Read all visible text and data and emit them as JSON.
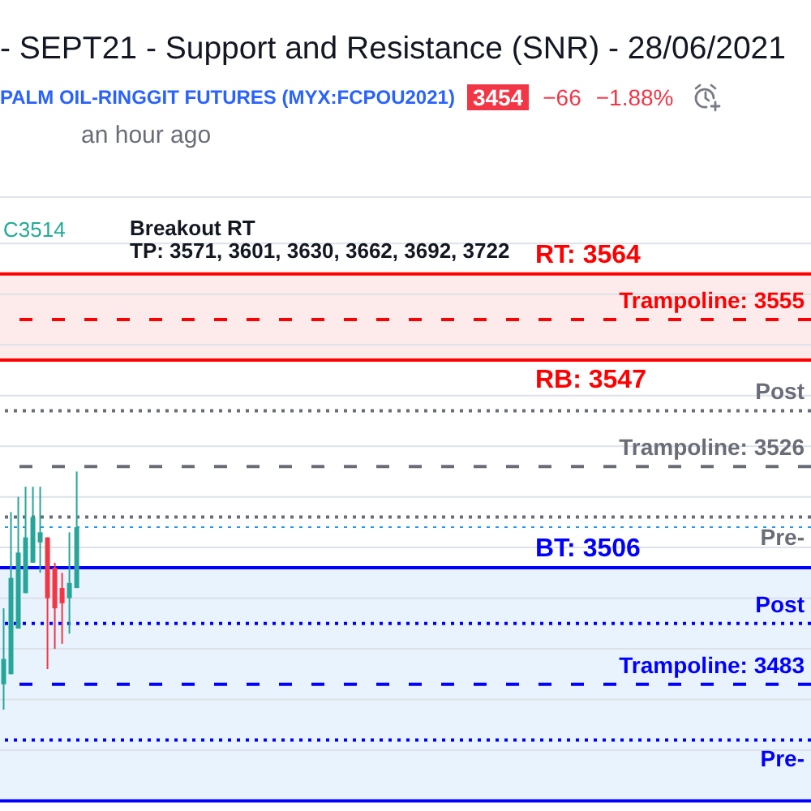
{
  "chart_data": {
    "type": "candlestick",
    "title": "- SEPT21 - Support and Resistance (SNR) - 28/06/2021",
    "subtitle": "PALM OIL-RINGGIT FUTURES (MYX:FCPOU2021)",
    "categories": [
      null,
      null,
      null,
      null,
      null,
      null,
      null,
      null,
      null,
      null,
      null,
      null,
      null,
      null,
      null,
      null,
      null,
      null,
      null,
      null,
      null,
      null,
      null,
      null,
      null,
      null,
      null,
      null,
      null,
      null,
      null,
      null,
      null,
      null,
      null,
      null,
      null,
      null,
      null,
      null,
      null,
      null,
      null,
      null,
      null,
      null,
      null,
      null,
      null,
      null,
      null,
      null,
      null,
      null,
      null,
      null,
      null,
      null,
      null,
      null,
      null,
      null,
      null,
      null,
      null,
      null,
      null,
      null,
      null,
      null,
      null,
      null,
      null,
      null,
      null,
      null,
      null,
      null,
      null,
      null,
      null,
      null,
      null,
      null,
      null,
      null,
      null,
      null,
      null,
      null,
      null,
      null,
      null,
      null,
      null,
      null,
      null,
      null,
      null,
      null,
      null,
      null,
      null,
      null,
      null,
      null,
      null,
      null,
      null,
      null,
      null
    ],
    "ohlc": [
      [
        3483,
        3498,
        3478,
        3488
      ],
      [
        3485,
        3517,
        3485,
        3504
      ],
      [
        3494,
        3520,
        3494,
        3509
      ],
      [
        3501,
        3522,
        3501,
        3512
      ],
      [
        3507,
        3522,
        3507,
        3516
      ],
      [
        3511,
        3522,
        3505,
        3513
      ],
      [
        3512,
        3512,
        3486,
        3500
      ],
      [
        3506,
        3507,
        3490,
        3498
      ],
      [
        3502,
        3505,
        3491,
        3499
      ],
      [
        3500,
        3513,
        3493,
        3503
      ],
      [
        3502,
        3525,
        3502,
        3514
      ],
      null,
      null,
      null,
      null,
      null,
      null,
      null,
      null,
      null,
      null,
      null,
      null,
      null,
      null,
      null,
      null,
      null,
      null,
      null,
      null,
      null,
      null,
      null,
      null,
      null,
      null,
      null,
      null,
      null,
      null,
      null,
      null,
      null,
      null,
      null,
      null,
      null,
      null,
      null,
      null,
      null,
      null,
      null,
      null,
      null,
      null,
      null,
      null,
      null,
      null,
      null,
      null,
      null,
      null,
      null,
      null,
      null,
      null,
      null,
      null,
      null,
      null,
      null,
      null,
      null,
      null,
      null,
      null,
      null,
      null,
      null,
      null,
      null,
      null,
      null,
      null,
      null,
      null,
      null,
      null,
      null,
      null,
      null,
      null,
      null,
      null,
      null,
      null,
      null,
      null,
      null,
      null,
      null,
      null,
      null,
      null,
      null,
      null,
      null,
      null
    ],
    "colors": [
      "#26a69a",
      "#26a69a",
      "#26a69a",
      "#26a69a",
      "#26a69a",
      "#26a69a",
      "#f23645",
      "#f23645",
      "#f23645",
      "#26a69a",
      "#26a69a",
      null,
      null,
      null,
      null,
      null,
      null,
      null,
      null,
      null,
      null,
      null,
      null,
      null,
      null,
      null,
      null,
      null,
      null,
      null,
      null,
      null,
      null,
      null,
      null,
      null,
      null,
      null,
      null,
      null,
      null,
      null,
      null,
      null,
      null,
      null,
      null,
      null,
      null,
      null,
      null,
      null,
      null,
      null,
      null,
      null,
      null,
      null,
      null,
      null,
      null,
      null,
      null,
      null,
      null,
      null,
      null,
      null,
      null,
      null,
      null,
      null,
      null,
      null,
      null,
      null,
      null,
      null,
      null,
      null,
      null,
      null,
      null,
      null,
      null,
      null,
      null,
      null,
      null,
      null,
      null,
      null,
      null,
      null,
      null,
      null,
      null,
      null,
      null,
      null,
      null,
      null,
      null,
      null,
      null,
      null,
      null,
      null,
      null,
      null,
      null
    ],
    "ylim": [
      3458,
      3579
    ],
    "yticks": [
      3460,
      3470,
      3480,
      3490,
      3500,
      3510,
      3520,
      3530,
      3540,
      3550,
      3560,
      3570
    ],
    "grid": "y",
    "tick_labels": false,
    "bands": [
      {
        "axis": "y",
        "from": 3547,
        "to": 3564,
        "color": "#fdebec"
      },
      {
        "axis": "y",
        "from": 3460,
        "to": 3506,
        "color": "#e9f3fd"
      }
    ],
    "ref_lines": [
      {
        "axis": "y",
        "value": 3564,
        "label": "RT: 3564",
        "color": "#ff0000",
        "line_style": "solid"
      },
      {
        "axis": "y",
        "value": 3555,
        "label": "Trampoline: 3555",
        "color": "#ff0000",
        "line_style": "dashed"
      },
      {
        "axis": "y",
        "value": 3547,
        "label": "RB: 3547",
        "color": "#ff0000",
        "line_style": "solid"
      },
      {
        "axis": "y",
        "value": 3537,
        "label": "Post",
        "color": "#6a6d78",
        "line_style": "dotted"
      },
      {
        "axis": "y",
        "value": 3526,
        "label": "Trampoline: 3526",
        "color": "#6a6d78",
        "line_style": "dashed"
      },
      {
        "axis": "y",
        "value": 3516,
        "label": "Pre-",
        "color": "#6a6d78",
        "line_style": "dotted"
      },
      {
        "axis": "y",
        "value": 3514,
        "label": null,
        "color": "#2196f3",
        "line_style": "dotted"
      },
      {
        "axis": "y",
        "value": 3506,
        "label": "BT: 3506",
        "color": "#0000ff",
        "line_style": "solid"
      },
      {
        "axis": "y",
        "value": 3495,
        "label": "Post",
        "color": "#0000ff",
        "line_style": "dotted"
      },
      {
        "axis": "y",
        "value": 3483,
        "label": "Trampoline: 3483",
        "color": "#0000ff",
        "line_style": "dashed"
      },
      {
        "axis": "y",
        "value": 3472,
        "label": "Pre-",
        "color": "#0000ff",
        "line_style": "dotted"
      },
      {
        "axis": "y",
        "value": 3460,
        "label": null,
        "color": "#0000ff",
        "line_style": "solid"
      }
    ],
    "annotations": [
      "Breakout RT",
      "TP: 3571, 3601, 3630, 3662, 3692, 3722",
      "C3514",
      "3454",
      "−66",
      "−1.88%",
      "an hour ago"
    ]
  }
}
